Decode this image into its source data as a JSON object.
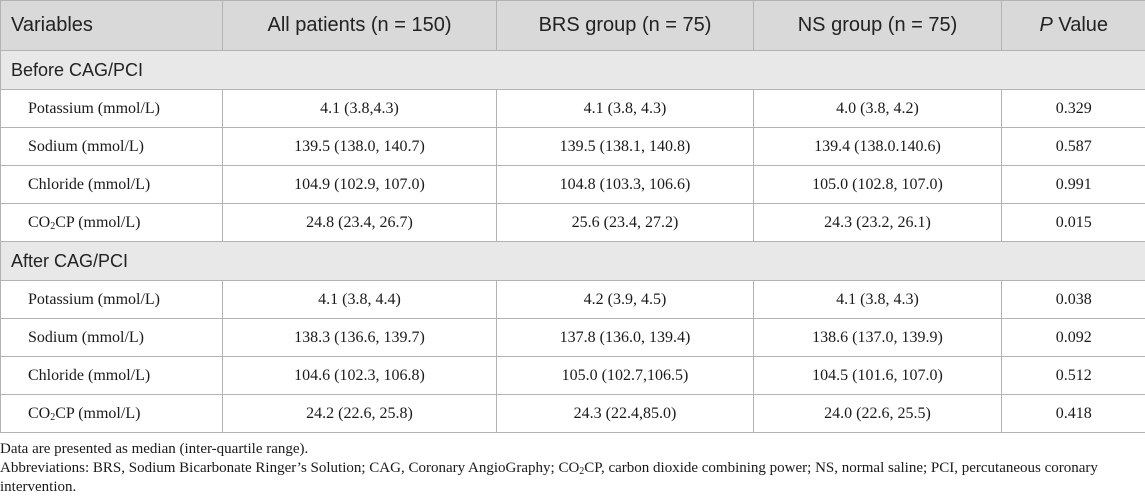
{
  "headers": [
    "Variables",
    "All patients (n = 150)",
    "BRS group (n = 75)",
    "NS group (n = 75)",
    "P Value"
  ],
  "header_p_italic": "P",
  "header_p_rest": " Value",
  "sections": [
    {
      "title": "Before CAG/PCI",
      "rows": [
        {
          "var": "Potassium (mmol/L)",
          "all": "4.1 (3.8,4.3)",
          "brs": "4.1 (3.8, 4.3)",
          "ns": "4.0 (3.8, 4.2)",
          "p": "0.329"
        },
        {
          "var": "Sodium (mmol/L)",
          "all": "139.5 (138.0, 140.7)",
          "brs": "139.5 (138.1, 140.8)",
          "ns": "139.4 (138.0.140.6)",
          "p": "0.587"
        },
        {
          "var": "Chloride (mmol/L)",
          "all": "104.9 (102.9, 107.0)",
          "brs": "104.8 (103.3, 106.6)",
          "ns": "105.0 (102.8, 107.0)",
          "p": "0.991"
        },
        {
          "var_pre": "CO",
          "var_sub": "2",
          "var_post": "CP (mmol/L)",
          "all": "24.8 (23.4, 26.7)",
          "brs": "25.6 (23.4, 27.2)",
          "ns": "24.3 (23.2, 26.1)",
          "p": "0.015"
        }
      ]
    },
    {
      "title": "After CAG/PCI",
      "rows": [
        {
          "var": "Potassium (mmol/L)",
          "all": "4.1 (3.8, 4.4)",
          "brs": "4.2 (3.9, 4.5)",
          "ns": "4.1 (3.8, 4.3)",
          "p": "0.038"
        },
        {
          "var": "Sodium (mmol/L)",
          "all": "138.3 (136.6, 139.7)",
          "brs": "137.8 (136.0, 139.4)",
          "ns": "138.6 (137.0, 139.9)",
          "p": "0.092"
        },
        {
          "var": "Chloride (mmol/L)",
          "all": "104.6 (102.3, 106.8)",
          "brs": "105.0 (102.7,106.5)",
          "ns": "104.5 (101.6, 107.0)",
          "p": "0.512"
        },
        {
          "var_pre": "CO",
          "var_sub": "2",
          "var_post": "CP (mmol/L)",
          "all": "24.2 (22.6, 25.8)",
          "brs": "24.3 (22.4,85.0)",
          "ns": "24.0 (22.6, 25.5)",
          "p": "0.418"
        }
      ]
    }
  ],
  "notes": {
    "line1": "Data are presented as median (inter-quartile range).",
    "line2_pre": "Abbreviations: BRS, Sodium Bicarbonate Ringer’s Solution; CAG, Coronary AngioGraphy; CO",
    "line2_sub": "2",
    "line2_post": "CP, carbon dioxide combining power; NS, normal saline; PCI, percutaneous coronary intervention."
  }
}
